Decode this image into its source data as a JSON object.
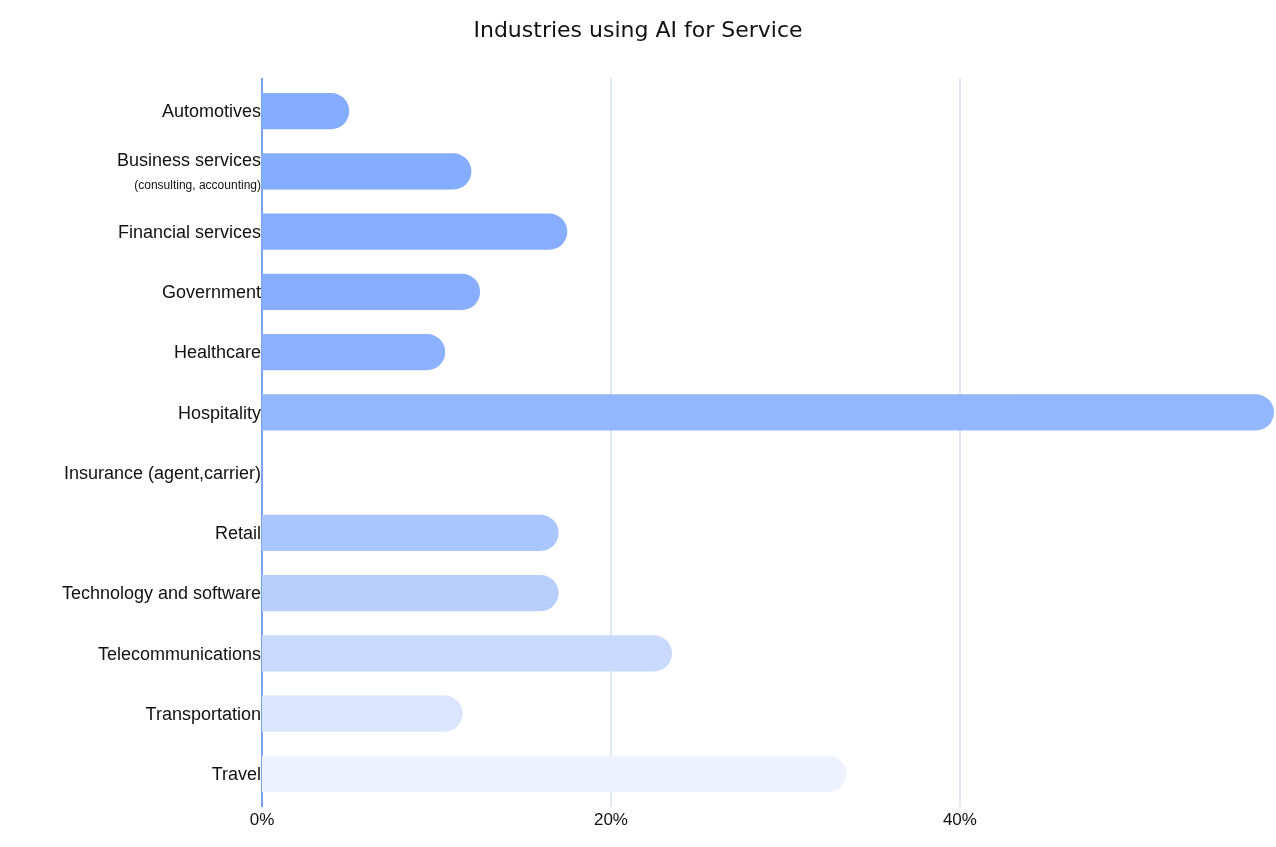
{
  "chart_data": {
    "type": "bar",
    "orientation": "horizontal",
    "title": "Industries using AI for Service",
    "categories": [
      "Automotives",
      "Business services\n(consulting, accounting)",
      "Financial services",
      "Government",
      "Healthcare",
      "Hospitality",
      "Insurance (agent,carrier)",
      "Retail",
      "Technology and software",
      "Telecommunications",
      "Transportation",
      "Travel"
    ],
    "values": [
      5,
      12,
      17.5,
      12.5,
      10.5,
      58,
      0,
      17,
      17,
      23.5,
      11.5,
      33.5
    ],
    "colors": [
      "#84acff",
      "#84acff",
      "#86adff",
      "#88afff",
      "#8cb2ff",
      "#93b7ff",
      "#a0c0ff",
      "#aac6fe",
      "#b8cffe",
      "#c9dafe",
      "#dae5fe",
      "#edf2fe"
    ],
    "xlim": [
      0,
      58
    ],
    "xticks": [
      {
        "value": 0,
        "label": "0%"
      },
      {
        "value": 20,
        "label": "20%"
      },
      {
        "value": 40,
        "label": "40%"
      }
    ],
    "grid": "x",
    "legend": false
  }
}
